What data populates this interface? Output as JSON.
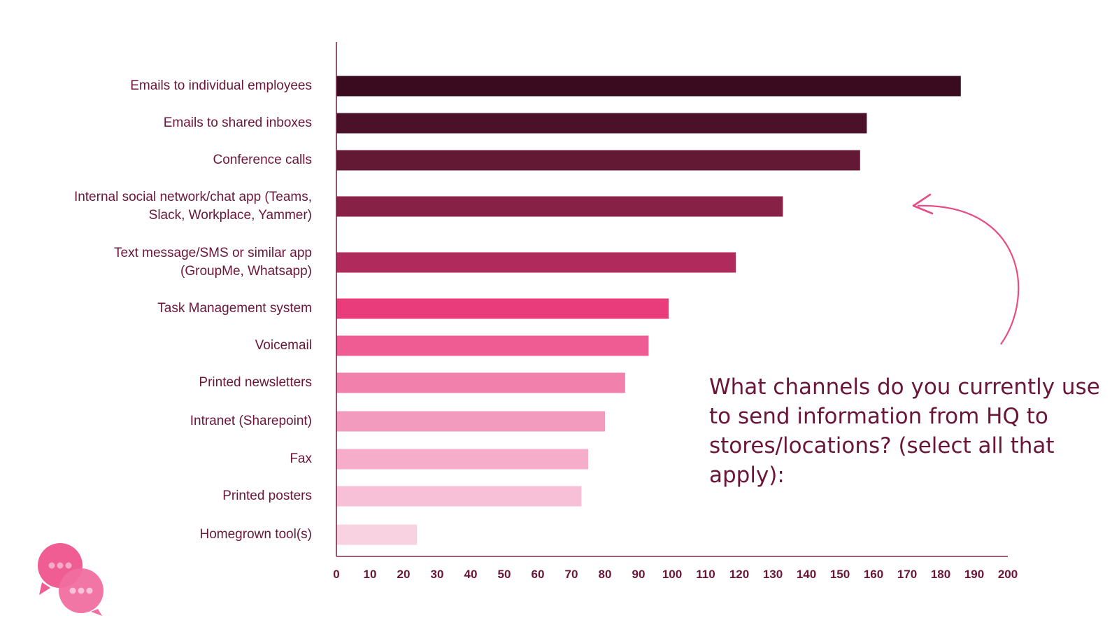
{
  "question": "What channels do you currently use to send information from HQ to stores/locations? (select all that apply):",
  "chart_data": {
    "type": "bar",
    "orientation": "horizontal",
    "title": "",
    "xlabel": "",
    "ylabel": "",
    "xlim": [
      0,
      200
    ],
    "xticks": [
      "0",
      "10",
      "20",
      "30",
      "40",
      "50",
      "60",
      "70",
      "80",
      "90",
      "100",
      "110",
      "120",
      "130",
      "140",
      "150",
      "160",
      "170",
      "180",
      "190",
      "200"
    ],
    "grid": false,
    "categories": [
      [
        "Emails to individual employees"
      ],
      [
        "Emails to shared inboxes"
      ],
      [
        "Conference calls"
      ],
      [
        "Internal social network/chat app (Teams,",
        "Slack, Workplace, Yammer)"
      ],
      [
        "Text message/SMS or similar app",
        "(GroupMe, Whatsapp)"
      ],
      [
        "Task Management system"
      ],
      [
        "Voicemail"
      ],
      [
        "Printed newsletters"
      ],
      [
        "Intranet (Sharepoint)"
      ],
      [
        "Fax"
      ],
      [
        "Printed posters"
      ],
      [
        "Homegrown tool(s)"
      ]
    ],
    "values": [
      186,
      158,
      156,
      133,
      119,
      99,
      93,
      86,
      80,
      75,
      73,
      24
    ],
    "colors": [
      "#3a0b1f",
      "#4a1128",
      "#631834",
      "#872146",
      "#b02b5c",
      "#e93c7a",
      "#ee5c93",
      "#f180ad",
      "#f39bbe",
      "#f5adc9",
      "#f7c0d6",
      "#f8d2e1"
    ]
  },
  "icons": {
    "logo": "chat-bubbles-icon"
  }
}
